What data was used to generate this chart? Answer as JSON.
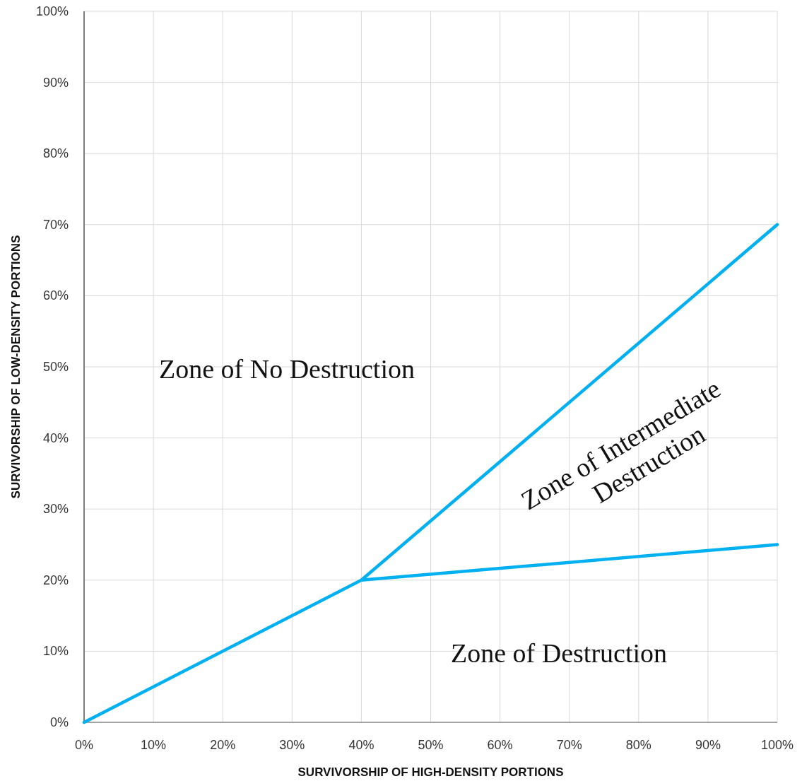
{
  "chart_data": {
    "type": "line",
    "xlabel": "SURVIVORSHIP OF HIGH-DENSITY PORTIONS",
    "ylabel": "SURVIVORSHIP OF LOW-DENSITY PORTIONS",
    "series": [
      {
        "color": "#00b0f0",
        "x": [
          0,
          40,
          100
        ],
        "values": [
          0,
          20,
          70
        ]
      },
      {
        "color": "#00b0f0",
        "x": [
          40,
          100
        ],
        "values": [
          20,
          25
        ]
      }
    ],
    "xlim": [
      0,
      100
    ],
    "ylim": [
      0,
      100
    ],
    "xticks": [
      {
        "value": 0,
        "label": "0%"
      },
      {
        "value": 10,
        "label": "10%"
      },
      {
        "value": 20,
        "label": "20%"
      },
      {
        "value": 30,
        "label": "30%"
      },
      {
        "value": 40,
        "label": "40%"
      },
      {
        "value": 50,
        "label": "50%"
      },
      {
        "value": 60,
        "label": "60%"
      },
      {
        "value": 70,
        "label": "70%"
      },
      {
        "value": 80,
        "label": "80%"
      },
      {
        "value": 90,
        "label": "90%"
      },
      {
        "value": 100,
        "label": "100%"
      }
    ],
    "yticks": [
      {
        "value": 0,
        "label": "0%"
      },
      {
        "value": 10,
        "label": "10%"
      },
      {
        "value": 20,
        "label": "20%"
      },
      {
        "value": 30,
        "label": "30%"
      },
      {
        "value": 40,
        "label": "40%"
      },
      {
        "value": 50,
        "label": "50%"
      },
      {
        "value": 60,
        "label": "60%"
      },
      {
        "value": 70,
        "label": "70%"
      },
      {
        "value": 80,
        "label": "80%"
      },
      {
        "value": 90,
        "label": "90%"
      },
      {
        "value": 100,
        "label": "100%"
      }
    ],
    "grid": true,
    "marker": "none",
    "line_style": "solid",
    "annotations": [
      "Zone of No Destruction",
      "Zone of Intermediate Destruction",
      "Zone of Destruction"
    ]
  }
}
